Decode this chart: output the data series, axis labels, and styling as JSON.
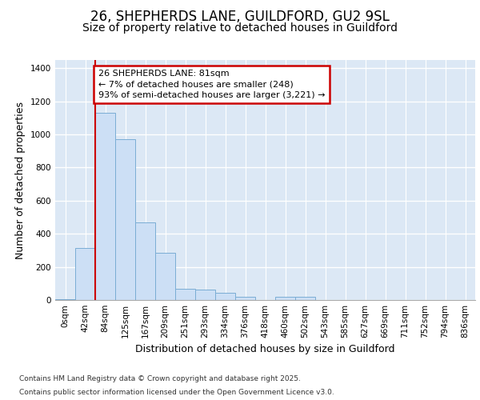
{
  "title_line1": "26, SHEPHERDS LANE, GUILDFORD, GU2 9SL",
  "title_line2": "Size of property relative to detached houses in Guildford",
  "xlabel": "Distribution of detached houses by size in Guildford",
  "ylabel": "Number of detached properties",
  "bar_labels": [
    "0sqm",
    "42sqm",
    "84sqm",
    "125sqm",
    "167sqm",
    "209sqm",
    "251sqm",
    "293sqm",
    "334sqm",
    "376sqm",
    "418sqm",
    "460sqm",
    "502sqm",
    "543sqm",
    "585sqm",
    "627sqm",
    "669sqm",
    "711sqm",
    "752sqm",
    "794sqm",
    "836sqm"
  ],
  "bar_values": [
    5,
    315,
    1130,
    970,
    470,
    285,
    70,
    65,
    45,
    20,
    0,
    20,
    20,
    0,
    0,
    0,
    0,
    0,
    0,
    0,
    0
  ],
  "bar_color": "#ccdff5",
  "bar_edge_color": "#7aadd4",
  "bg_color": "#dce8f5",
  "fig_bg_color": "#ffffff",
  "red_line_x": 1.5,
  "annotation_title": "26 SHEPHERDS LANE: 81sqm",
  "annotation_line1": "← 7% of detached houses are smaller (248)",
  "annotation_line2": "93% of semi-detached houses are larger (3,221) →",
  "annotation_box_color": "#ffffff",
  "annotation_box_edge": "#cc0000",
  "red_line_color": "#cc0000",
  "footnote_line1": "Contains HM Land Registry data © Crown copyright and database right 2025.",
  "footnote_line2": "Contains public sector information licensed under the Open Government Licence v3.0.",
  "ylim": [
    0,
    1450
  ],
  "yticks": [
    0,
    200,
    400,
    600,
    800,
    1000,
    1200,
    1400
  ],
  "grid_color": "#ffffff",
  "title_fontsize": 12,
  "subtitle_fontsize": 10,
  "tick_fontsize": 7.5,
  "xlabel_fontsize": 9,
  "ylabel_fontsize": 9,
  "annot_fontsize": 8
}
